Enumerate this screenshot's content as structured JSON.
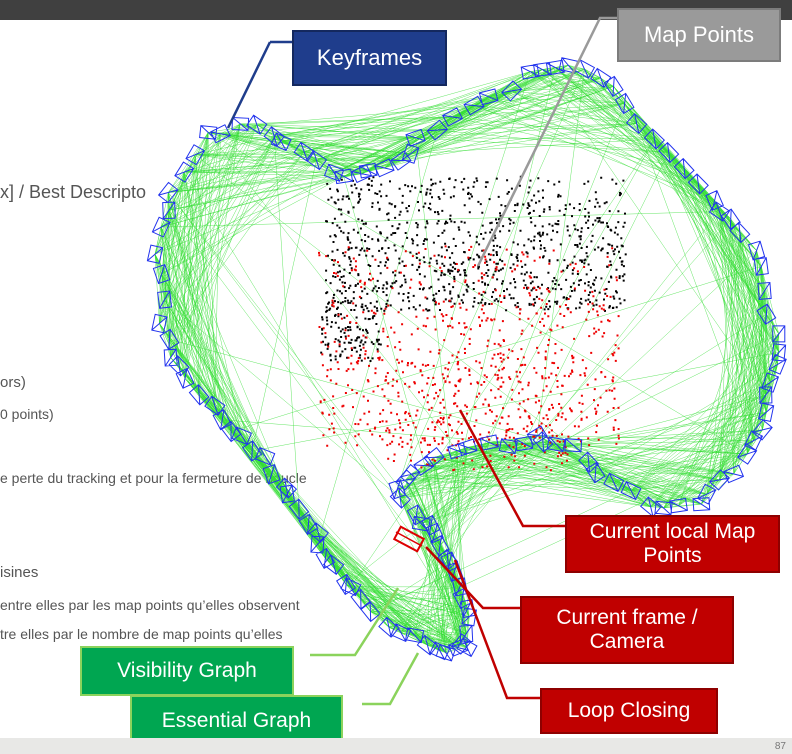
{
  "labels": {
    "keyframes": "Keyframes",
    "map_points": "Map Points",
    "current_local_map_points": "Current local Map Points",
    "current_frame_camera": "Current frame / Camera",
    "loop_closing": "Loop Closing",
    "visibility_graph": "Visibility Graph",
    "essential_graph": "Essential Graph"
  },
  "background_text": {
    "line1": "x] / Best Descripto",
    "line2": "ors)",
    "line3": "0 points)",
    "line4": "e perte du  tracking et pour la fermeture de boucle",
    "line5": "isines",
    "line6": "entre elles par les map points qu’elles observent",
    "line7": "tre elles par le nombre de map points qu’elles"
  },
  "page_number": "87",
  "colors": {
    "keyframe_blue": "#1f3d8c",
    "graph_green": "#33dd33",
    "camera_blue": "#2233ee",
    "point_black": "#000000",
    "point_red": "#ee0000",
    "callout_red": "#c00000",
    "callout_green": "#00a651",
    "callout_grey": "#9a9a9a"
  }
}
